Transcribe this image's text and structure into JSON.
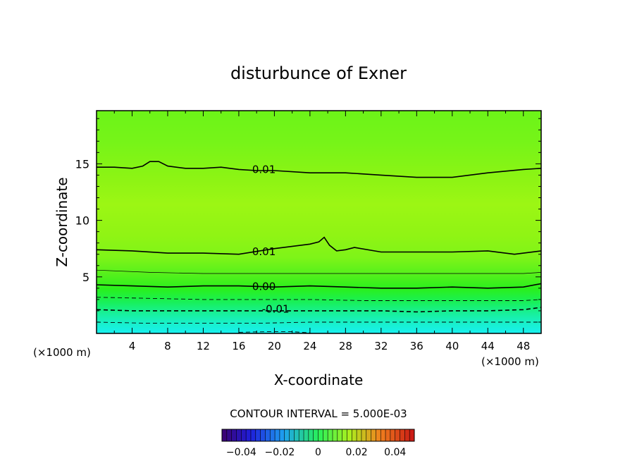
{
  "chart_data": {
    "type": "contour",
    "title": "disturbunce of Exner",
    "xlabel": "X-coordinate",
    "ylabel": "Z-coordinate",
    "x_unit": "(×1000 m)",
    "y_unit": "(×1000 m)",
    "xlim": [
      0,
      50
    ],
    "ylim": [
      0,
      19.7
    ],
    "x_ticks": [
      4,
      8,
      12,
      16,
      20,
      24,
      28,
      32,
      36,
      40,
      44,
      48
    ],
    "y_ticks": [
      5,
      10,
      15
    ],
    "contour_interval_text": "CONTOUR INTERVAL = 5.000E-03",
    "contour_lines": [
      {
        "label": "0.01",
        "label_x": 17.5,
        "label_z": 14.55,
        "style": "solid",
        "points": [
          [
            0,
            14.7
          ],
          [
            2,
            14.7
          ],
          [
            4,
            14.6
          ],
          [
            5.2,
            14.8
          ],
          [
            6,
            15.2
          ],
          [
            7,
            15.2
          ],
          [
            8,
            14.8
          ],
          [
            10,
            14.6
          ],
          [
            12,
            14.6
          ],
          [
            14,
            14.7
          ],
          [
            16,
            14.5
          ],
          [
            18,
            14.4
          ],
          [
            20,
            14.4
          ],
          [
            24,
            14.2
          ],
          [
            28,
            14.2
          ],
          [
            32,
            14.0
          ],
          [
            36,
            13.8
          ],
          [
            40,
            13.8
          ],
          [
            44,
            14.2
          ],
          [
            48,
            14.5
          ],
          [
            50,
            14.6
          ]
        ]
      },
      {
        "label": "0.01",
        "label_x": 17.5,
        "label_z": 7.3,
        "style": "solid",
        "points": [
          [
            0,
            7.4
          ],
          [
            4,
            7.3
          ],
          [
            8,
            7.1
          ],
          [
            12,
            7.1
          ],
          [
            16,
            7.0
          ],
          [
            20,
            7.5
          ],
          [
            24,
            7.9
          ],
          [
            25,
            8.1
          ],
          [
            25.6,
            8.5
          ],
          [
            26.2,
            7.8
          ],
          [
            27,
            7.3
          ],
          [
            28,
            7.4
          ],
          [
            29,
            7.6
          ],
          [
            32,
            7.2
          ],
          [
            36,
            7.2
          ],
          [
            40,
            7.2
          ],
          [
            44,
            7.3
          ],
          [
            47,
            7.0
          ],
          [
            50,
            7.3
          ]
        ]
      },
      {
        "label": "0.00",
        "label_x": 17.5,
        "label_z": 4.2,
        "style": "solid",
        "points": [
          [
            0,
            4.3
          ],
          [
            4,
            4.2
          ],
          [
            8,
            4.1
          ],
          [
            12,
            4.2
          ],
          [
            16,
            4.2
          ],
          [
            20,
            4.1
          ],
          [
            24,
            4.2
          ],
          [
            28,
            4.1
          ],
          [
            32,
            4.0
          ],
          [
            36,
            4.0
          ],
          [
            40,
            4.1
          ],
          [
            44,
            4.0
          ],
          [
            48,
            4.1
          ],
          [
            50,
            4.4
          ]
        ]
      },
      {
        "label": "",
        "style": "thin",
        "points": [
          [
            0,
            5.6
          ],
          [
            6,
            5.4
          ],
          [
            12,
            5.3
          ],
          [
            18,
            5.3
          ],
          [
            24,
            5.3
          ],
          [
            30,
            5.3
          ],
          [
            36,
            5.3
          ],
          [
            42,
            5.3
          ],
          [
            48,
            5.3
          ],
          [
            50,
            5.4
          ]
        ]
      },
      {
        "label": "",
        "style": "dashed",
        "points": [
          [
            0,
            3.2
          ],
          [
            6,
            3.1
          ],
          [
            12,
            3.0
          ],
          [
            18,
            3.0
          ],
          [
            24,
            3.0
          ],
          [
            30,
            2.9
          ],
          [
            36,
            2.9
          ],
          [
            42,
            2.9
          ],
          [
            48,
            2.9
          ],
          [
            50,
            3.0
          ]
        ]
      },
      {
        "label": "-0.01",
        "label_x": 18.6,
        "label_z": 2.2,
        "style": "dashed",
        "points": [
          [
            0,
            2.1
          ],
          [
            4,
            2.0
          ],
          [
            8,
            2.0
          ],
          [
            12,
            2.0
          ],
          [
            16,
            2.0
          ],
          [
            20,
            2.0
          ],
          [
            24,
            2.0
          ],
          [
            28,
            2.0
          ],
          [
            32,
            2.0
          ],
          [
            36,
            1.9
          ],
          [
            40,
            2.0
          ],
          [
            44,
            2.0
          ],
          [
            48,
            2.1
          ],
          [
            50,
            2.3
          ]
        ]
      },
      {
        "label": "",
        "style": "dashed",
        "points": [
          [
            0,
            1.0
          ],
          [
            6,
            0.9
          ],
          [
            12,
            0.9
          ],
          [
            18,
            0.9
          ],
          [
            24,
            1.0
          ],
          [
            30,
            1.0
          ],
          [
            36,
            1.0
          ],
          [
            42,
            1.0
          ],
          [
            48,
            1.0
          ],
          [
            50,
            1.0
          ]
        ]
      },
      {
        "label": "",
        "style": "dashed",
        "points": [
          [
            16,
            0.1
          ],
          [
            19,
            0.15
          ],
          [
            22,
            0.15
          ],
          [
            24,
            0.05
          ]
        ]
      }
    ],
    "colorbar": {
      "tick_labels": [
        "−0.04",
        "−0.02",
        "0",
        "0.02",
        "0.04"
      ],
      "tick_values": [
        -0.04,
        -0.02,
        0,
        0.02,
        0.04
      ],
      "range": [
        -0.05,
        0.05
      ]
    }
  }
}
